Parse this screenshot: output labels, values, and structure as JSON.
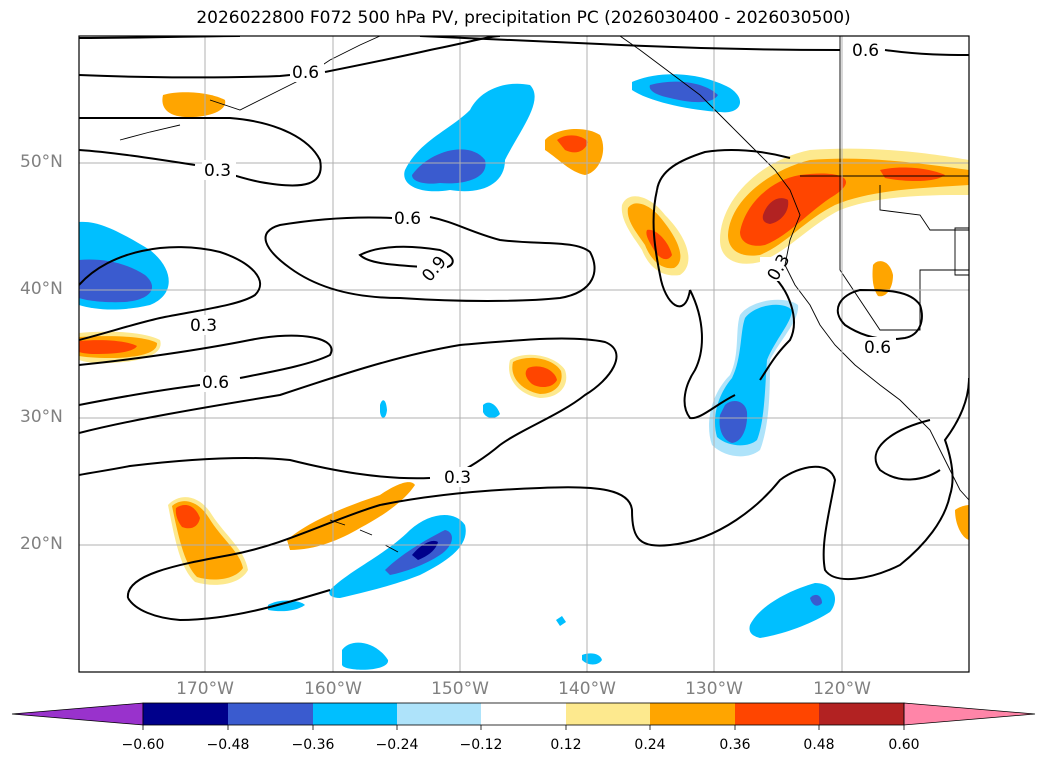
{
  "title": "2026022800 F072 500 hPa PV, precipitation PC (2026030400 - 2026030500)",
  "lat_labels": [
    "50°N",
    "40°N",
    "30°N",
    "20°N"
  ],
  "lon_labels": [
    "170°W",
    "160°W",
    "150°W",
    "140°W",
    "130°W",
    "120°W"
  ],
  "contour_labels": [
    "0.6",
    "0.6",
    "0.3",
    "0.6",
    "0.9",
    "0.3",
    "0.6",
    "0.3",
    "0.3",
    "0.6"
  ],
  "colorbar": {
    "ticks": [
      "−0.60",
      "−0.48",
      "−0.36",
      "−0.24",
      "−0.12",
      "0.12",
      "0.24",
      "0.36",
      "0.48",
      "0.60"
    ],
    "colors": [
      "#9932cc",
      "#00008b",
      "#3a5bcf",
      "#00bfff",
      "#aee3fa",
      "#ffffff",
      "#fde98e",
      "#ffa500",
      "#ff4500",
      "#b22222",
      "#ff85a8"
    ]
  },
  "extent": {
    "lon": [
      -180,
      -110
    ],
    "lat": [
      10,
      60
    ]
  },
  "colors": {
    "frame": "#000000",
    "grid": "#b0b0b0",
    "axis_label": "#808080"
  }
}
